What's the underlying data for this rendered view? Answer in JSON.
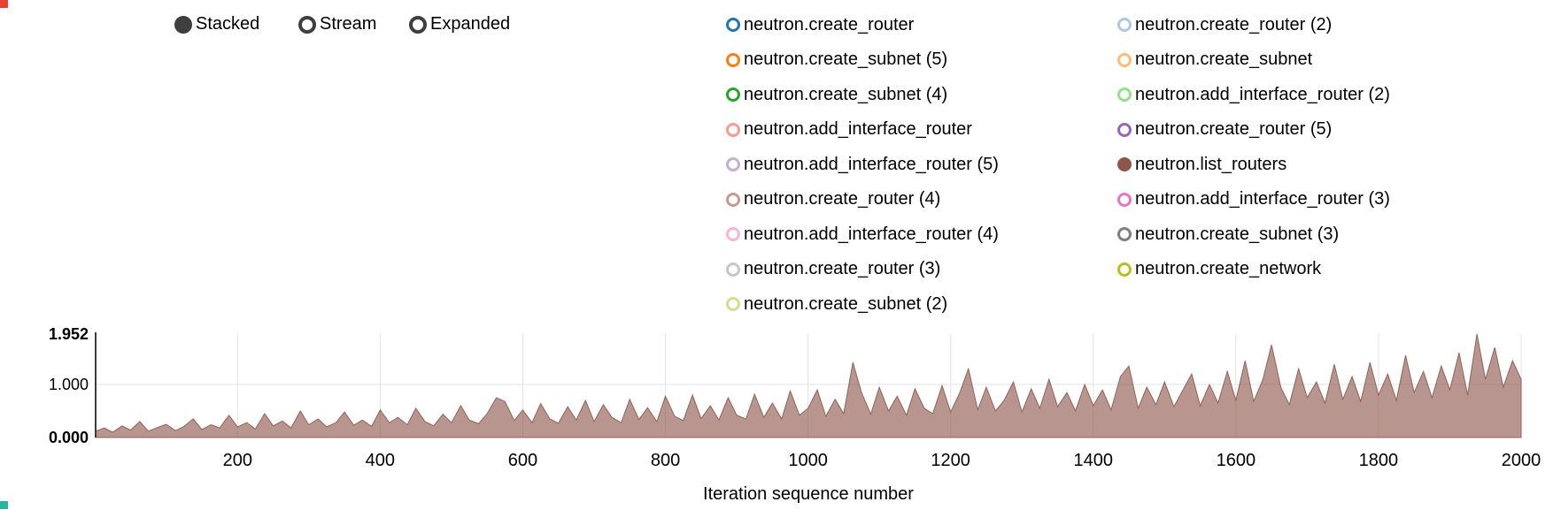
{
  "controls": {
    "options": [
      {
        "label": "Stacked",
        "selected": true
      },
      {
        "label": "Stream",
        "selected": false
      },
      {
        "label": "Expanded",
        "selected": false
      }
    ],
    "color": "#3f3f3f"
  },
  "legend": {
    "columns": [
      [
        {
          "label": "neutron.create_router",
          "color": "#1f77b4",
          "filled": false
        },
        {
          "label": "neutron.create_subnet (5)",
          "color": "#ff7f0e",
          "filled": false
        },
        {
          "label": "neutron.create_subnet (4)",
          "color": "#2ca02c",
          "filled": false
        },
        {
          "label": "neutron.add_interface_router",
          "color": "#ff9896",
          "filled": false
        },
        {
          "label": "neutron.add_interface_router (5)",
          "color": "#c5b0d5",
          "filled": false
        },
        {
          "label": "neutron.create_router (4)",
          "color": "#c49c94",
          "filled": false
        },
        {
          "label": "neutron.add_interface_router (4)",
          "color": "#f7b6d2",
          "filled": false
        },
        {
          "label": "neutron.create_router (3)",
          "color": "#c7c7c7",
          "filled": false
        },
        {
          "label": "neutron.create_subnet (2)",
          "color": "#dbdb8d",
          "filled": false
        }
      ],
      [
        {
          "label": "neutron.create_router (2)",
          "color": "#aec7e8",
          "filled": false
        },
        {
          "label": "neutron.create_subnet",
          "color": "#ffbb78",
          "filled": false
        },
        {
          "label": "neutron.add_interface_router (2)",
          "color": "#98df8a",
          "filled": false
        },
        {
          "label": "neutron.create_router (5)",
          "color": "#9467bd",
          "filled": false
        },
        {
          "label": "neutron.list_routers",
          "color": "#8c564b",
          "filled": true
        },
        {
          "label": "neutron.add_interface_router (3)",
          "color": "#e377c2",
          "filled": false
        },
        {
          "label": "neutron.create_subnet (3)",
          "color": "#7f7f7f",
          "filled": false
        },
        {
          "label": "neutron.create_network",
          "color": "#bcbd22",
          "filled": false
        }
      ]
    ]
  },
  "chart_data": {
    "type": "area",
    "subtype": "stacked-area (single active series)",
    "title": "",
    "xlabel": "Iteration sequence number",
    "ylabel": "",
    "xlim": [
      1,
      2000
    ],
    "ylim": [
      0,
      1.952
    ],
    "grid": true,
    "legend_position": "top-right",
    "xticks": [
      200,
      400,
      600,
      800,
      1000,
      1200,
      1400,
      1600,
      1800,
      2000
    ],
    "yticks": [
      {
        "value": 0,
        "label": "0.000",
        "bold": true,
        "grid": false
      },
      {
        "value": 1.0,
        "label": "1.000",
        "bold": false,
        "grid": true
      },
      {
        "value": 1.952,
        "label": "1.952",
        "bold": true,
        "grid": false
      }
    ],
    "active_series": "neutron.list_routers",
    "series": [
      {
        "name": "neutron.list_routers",
        "color": "#8c564b",
        "fill_opacity": 0.62,
        "points": [
          [
            1,
            0.12
          ],
          [
            13,
            0.18
          ],
          [
            25,
            0.1
          ],
          [
            38,
            0.22
          ],
          [
            50,
            0.14
          ],
          [
            63,
            0.3
          ],
          [
            75,
            0.12
          ],
          [
            88,
            0.19
          ],
          [
            100,
            0.25
          ],
          [
            113,
            0.13
          ],
          [
            125,
            0.21
          ],
          [
            138,
            0.35
          ],
          [
            150,
            0.15
          ],
          [
            163,
            0.24
          ],
          [
            175,
            0.18
          ],
          [
            188,
            0.42
          ],
          [
            200,
            0.2
          ],
          [
            213,
            0.28
          ],
          [
            225,
            0.16
          ],
          [
            238,
            0.45
          ],
          [
            250,
            0.22
          ],
          [
            263,
            0.31
          ],
          [
            275,
            0.18
          ],
          [
            288,
            0.5
          ],
          [
            300,
            0.24
          ],
          [
            313,
            0.35
          ],
          [
            325,
            0.2
          ],
          [
            338,
            0.28
          ],
          [
            350,
            0.48
          ],
          [
            363,
            0.23
          ],
          [
            375,
            0.33
          ],
          [
            388,
            0.21
          ],
          [
            400,
            0.52
          ],
          [
            413,
            0.28
          ],
          [
            425,
            0.38
          ],
          [
            438,
            0.24
          ],
          [
            450,
            0.55
          ],
          [
            463,
            0.3
          ],
          [
            475,
            0.22
          ],
          [
            488,
            0.44
          ],
          [
            500,
            0.28
          ],
          [
            513,
            0.6
          ],
          [
            525,
            0.33
          ],
          [
            538,
            0.26
          ],
          [
            550,
            0.45
          ],
          [
            563,
            0.75
          ],
          [
            575,
            0.68
          ],
          [
            588,
            0.32
          ],
          [
            600,
            0.52
          ],
          [
            613,
            0.28
          ],
          [
            625,
            0.64
          ],
          [
            638,
            0.35
          ],
          [
            650,
            0.27
          ],
          [
            663,
            0.58
          ],
          [
            675,
            0.33
          ],
          [
            688,
            0.7
          ],
          [
            700,
            0.3
          ],
          [
            713,
            0.62
          ],
          [
            725,
            0.38
          ],
          [
            738,
            0.28
          ],
          [
            750,
            0.72
          ],
          [
            763,
            0.34
          ],
          [
            775,
            0.56
          ],
          [
            788,
            0.3
          ],
          [
            800,
            0.78
          ],
          [
            813,
            0.4
          ],
          [
            825,
            0.32
          ],
          [
            838,
            0.8
          ],
          [
            850,
            0.36
          ],
          [
            863,
            0.6
          ],
          [
            875,
            0.33
          ],
          [
            888,
            0.75
          ],
          [
            900,
            0.42
          ],
          [
            913,
            0.35
          ],
          [
            925,
            0.82
          ],
          [
            938,
            0.38
          ],
          [
            950,
            0.65
          ],
          [
            963,
            0.35
          ],
          [
            975,
            0.88
          ],
          [
            988,
            0.42
          ],
          [
            1000,
            0.55
          ],
          [
            1013,
            0.9
          ],
          [
            1025,
            0.4
          ],
          [
            1038,
            0.72
          ],
          [
            1050,
            0.45
          ],
          [
            1063,
            1.42
          ],
          [
            1075,
            0.85
          ],
          [
            1088,
            0.44
          ],
          [
            1100,
            0.95
          ],
          [
            1113,
            0.5
          ],
          [
            1125,
            0.78
          ],
          [
            1138,
            0.42
          ],
          [
            1150,
            0.92
          ],
          [
            1163,
            0.55
          ],
          [
            1175,
            0.45
          ],
          [
            1188,
            0.98
          ],
          [
            1200,
            0.48
          ],
          [
            1213,
            0.85
          ],
          [
            1225,
            1.3
          ],
          [
            1238,
            0.52
          ],
          [
            1250,
            0.95
          ],
          [
            1263,
            0.5
          ],
          [
            1275,
            0.7
          ],
          [
            1288,
            1.05
          ],
          [
            1300,
            0.48
          ],
          [
            1313,
            0.92
          ],
          [
            1325,
            0.55
          ],
          [
            1338,
            1.1
          ],
          [
            1350,
            0.58
          ],
          [
            1363,
            0.85
          ],
          [
            1375,
            0.5
          ],
          [
            1388,
            1.0
          ],
          [
            1400,
            0.6
          ],
          [
            1413,
            0.9
          ],
          [
            1425,
            0.52
          ],
          [
            1438,
            1.15
          ],
          [
            1450,
            1.35
          ],
          [
            1463,
            0.55
          ],
          [
            1475,
            0.95
          ],
          [
            1488,
            0.62
          ],
          [
            1500,
            1.05
          ],
          [
            1513,
            0.58
          ],
          [
            1525,
            0.88
          ],
          [
            1538,
            1.2
          ],
          [
            1550,
            0.6
          ],
          [
            1563,
            1.0
          ],
          [
            1575,
            0.65
          ],
          [
            1588,
            1.25
          ],
          [
            1600,
            0.7
          ],
          [
            1613,
            1.45
          ],
          [
            1625,
            0.68
          ],
          [
            1638,
            1.1
          ],
          [
            1650,
            1.75
          ],
          [
            1663,
            0.95
          ],
          [
            1675,
            0.62
          ],
          [
            1688,
            1.3
          ],
          [
            1700,
            0.75
          ],
          [
            1713,
            1.05
          ],
          [
            1725,
            0.65
          ],
          [
            1738,
            1.38
          ],
          [
            1750,
            0.72
          ],
          [
            1763,
            1.15
          ],
          [
            1775,
            0.68
          ],
          [
            1788,
            1.42
          ],
          [
            1800,
            0.8
          ],
          [
            1813,
            1.2
          ],
          [
            1825,
            0.7
          ],
          [
            1838,
            1.55
          ],
          [
            1850,
            0.85
          ],
          [
            1863,
            1.25
          ],
          [
            1875,
            0.75
          ],
          [
            1888,
            1.35
          ],
          [
            1900,
            0.9
          ],
          [
            1913,
            1.6
          ],
          [
            1925,
            0.8
          ],
          [
            1938,
            1.952
          ],
          [
            1950,
            1.1
          ],
          [
            1963,
            1.7
          ],
          [
            1975,
            0.95
          ],
          [
            1988,
            1.45
          ],
          [
            2000,
            1.1
          ]
        ]
      }
    ],
    "colors": {
      "grid": "#e3e3e3",
      "axis_line": "#3c3c3c",
      "area": "#8c564b"
    }
  },
  "artifacts": {
    "top_left_color": "#e8412f",
    "bottom_left_color": "#2ab5a0"
  }
}
